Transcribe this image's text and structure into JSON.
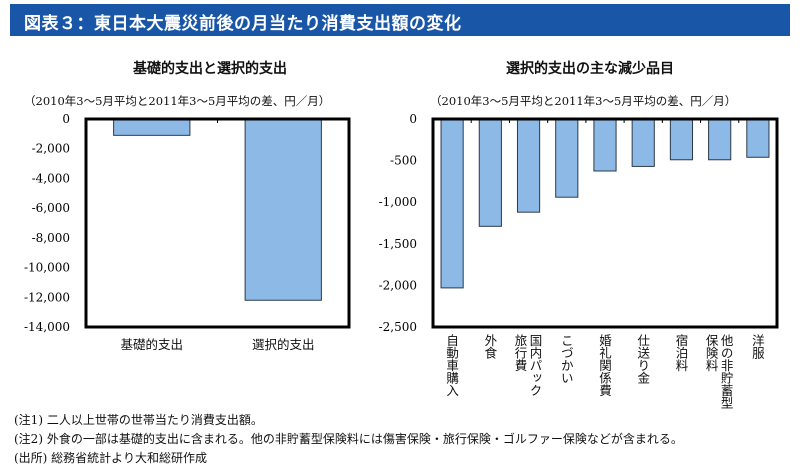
{
  "header": {
    "title": "図表３：東日本大震災前後の月当たり消費支出額の変化",
    "color": "#1a56a8"
  },
  "chart_data": [
    {
      "type": "bar",
      "title": "基礎的支出と選択的支出",
      "subtitle": "（2010年3～5月平均と2011年3～5月平均の差、円／月）",
      "categories": [
        "基礎的支出",
        "選択的支出"
      ],
      "values": [
        -1100,
        -12200
      ],
      "ylim": [
        -14000,
        0
      ],
      "yticks": [
        0,
        -2000,
        -4000,
        -6000,
        -8000,
        -10000,
        -12000,
        -14000
      ],
      "ytick_labels": [
        "0",
        "-2,000",
        "-4,000",
        "-6,000",
        "-8,000",
        "-10,000",
        "-12,000",
        "-14,000"
      ],
      "grid": false,
      "bar_color": "#8db9e6"
    },
    {
      "type": "bar",
      "title": "選択的支出の主な減少品目",
      "subtitle": "（2010年3～5月平均と2011年3～5月平均の差、円／月）",
      "categories": [
        "自動車購入",
        "外食",
        "国内パック\n旅行費",
        "こづかい",
        "婚礼関係費",
        "仕送り金",
        "宿泊料",
        "他の非貯蓄型\n保険料",
        "洋服"
      ],
      "values": [
        -2030,
        -1290,
        -1120,
        -940,
        -625,
        -570,
        -490,
        -490,
        -460
      ],
      "ylim": [
        -2500,
        0
      ],
      "yticks": [
        0,
        -500,
        -1000,
        -1500,
        -2000,
        -2500
      ],
      "ytick_labels": [
        "0",
        "-500",
        "-1,000",
        "-1,500",
        "-2,000",
        "-2,500"
      ],
      "grid": false,
      "bar_color": "#8db9e6"
    }
  ],
  "notes": [
    "(注1)  二人以上世帯の世帯当たり消費支出額。",
    "(注2)  外食の一部は基礎的支出に含まれる。他の非貯蓄型保険料には傷害保険・旅行保険・ゴルファー保険などが含まれる。",
    "(出所)  総務省統計より大和総研作成"
  ]
}
